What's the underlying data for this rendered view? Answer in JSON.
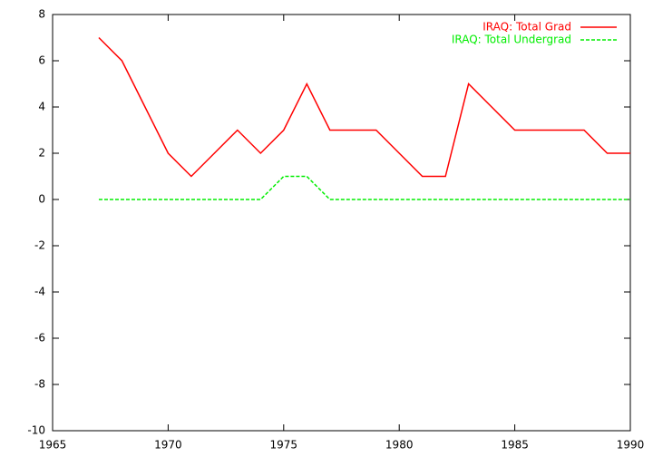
{
  "chart_data": {
    "type": "line",
    "x": [
      1967,
      1968,
      1969,
      1970,
      1971,
      1972,
      1973,
      1974,
      1975,
      1976,
      1977,
      1978,
      1979,
      1980,
      1981,
      1982,
      1983,
      1984,
      1985,
      1986,
      1987,
      1988,
      1989,
      1990
    ],
    "series": [
      {
        "name": "IRAQ: Total Grad",
        "color": "#ff0000",
        "dashed": false,
        "values": [
          7,
          6,
          4,
          2,
          1,
          2,
          3,
          2,
          3,
          5,
          3,
          3,
          3,
          2,
          1,
          1,
          5,
          4,
          3,
          3,
          3,
          3,
          2,
          2
        ]
      },
      {
        "name": "IRAQ: Total Undergrad",
        "color": "#00ee00",
        "dashed": true,
        "values": [
          0,
          0,
          0,
          0,
          0,
          0,
          0,
          0,
          1,
          1,
          0,
          0,
          0,
          0,
          0,
          0,
          0,
          0,
          0,
          0,
          0,
          0,
          0,
          0
        ]
      }
    ],
    "xlim": [
      1965,
      1990
    ],
    "xticks": [
      1965,
      1970,
      1975,
      1980,
      1985,
      1990
    ],
    "ylim": [
      -10,
      8
    ],
    "yticks": [
      -10,
      -8,
      -6,
      -4,
      -2,
      0,
      2,
      4,
      6,
      8
    ],
    "legend": "top-right"
  }
}
